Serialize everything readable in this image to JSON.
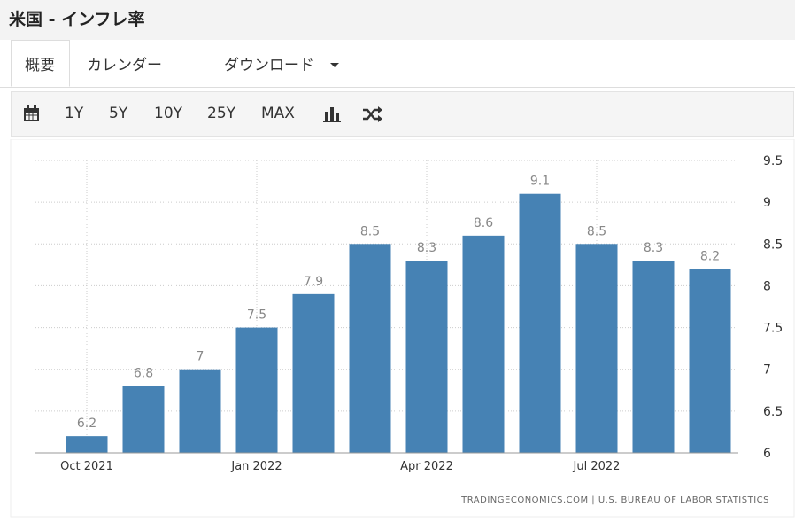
{
  "header": {
    "title": "米国 - インフレ率"
  },
  "tabs": [
    "概要",
    "カレンダー",
    "ダウンロード"
  ],
  "toolbar": [
    "1Y",
    "5Y",
    "10Y",
    "25Y",
    "MAX"
  ],
  "chart_data": {
    "type": "bar",
    "categories": [
      "Oct 2021",
      null,
      null,
      "Jan 2022",
      null,
      null,
      "Apr 2022",
      null,
      null,
      "Jul 2022",
      null,
      null
    ],
    "values": [
      6.2,
      6.8,
      7,
      7.5,
      7.9,
      8.5,
      8.3,
      8.6,
      9.1,
      8.5,
      8.3,
      8.2
    ],
    "color": "#4682b4",
    "ylim": [
      6,
      9.5
    ],
    "yticks": [
      6,
      6.5,
      7,
      7.5,
      8,
      8.5,
      9,
      9.5
    ],
    "grid": true,
    "source": "TRADINGECONOMICS.COM | U.S. BUREAU OF LABOR STATISTICS"
  }
}
